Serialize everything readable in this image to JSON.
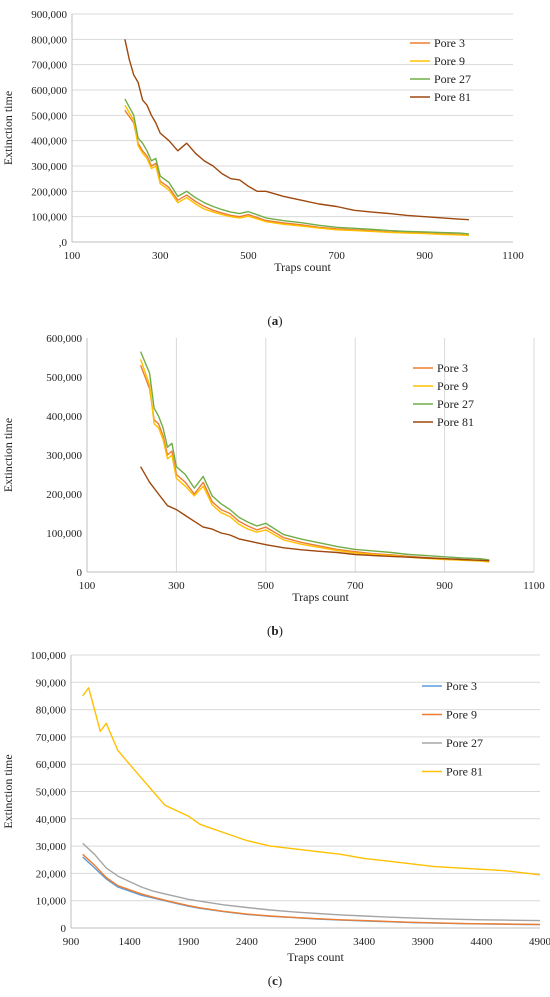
{
  "colors": {
    "pore3_ab": "#ED7D31",
    "pore9_ab": "#FFC000",
    "pore27_ab": "#70AD47",
    "pore81_ab": "#9E480E",
    "pore3_c": "#5B9BD5",
    "pore9_c": "#ED7D31",
    "pore27_c": "#A5A5A5",
    "pore81_c": "#FFC000",
    "gridline": "#D9D9D9",
    "axis": "#BFBFBF"
  },
  "chart_data": [
    {
      "type": "line",
      "caption_open": "(",
      "caption_letter": "a",
      "caption_close": ")",
      "xlabel": "Traps count",
      "ylabel": "Extinction time",
      "xlim": [
        100,
        1100
      ],
      "ylim": [
        0,
        900000
      ],
      "x_ticks": [
        100,
        300,
        500,
        700,
        900,
        1100
      ],
      "x_tick_labels": [
        "100",
        "300",
        "500",
        "700",
        "900",
        "1100"
      ],
      "y_ticks": [
        0,
        100000,
        200000,
        300000,
        400000,
        500000,
        600000,
        700000,
        800000,
        900000
      ],
      "y_tick_labels": [
        ",0",
        "100,000",
        "200,000",
        "300,000",
        "400,000",
        "500,000",
        "600,000",
        "700,000",
        "800,000",
        "900,000"
      ],
      "grid": "horizontal",
      "legend_position": "top-right",
      "series": [
        {
          "name": "Pore 3",
          "color_key": "pore3_ab",
          "x": [
            220,
            240,
            250,
            260,
            270,
            280,
            290,
            300,
            320,
            340,
            360,
            380,
            400,
            420,
            440,
            460,
            480,
            500,
            540,
            580,
            620,
            660,
            700,
            740,
            780,
            820,
            860,
            900,
            940,
            980,
            1000
          ],
          "y": [
            520000,
            470000,
            390000,
            360000,
            340000,
            300000,
            310000,
            240000,
            215000,
            165000,
            185000,
            160000,
            140000,
            125000,
            115000,
            105000,
            100000,
            108000,
            85000,
            75000,
            68000,
            58000,
            52000,
            48000,
            45000,
            40000,
            37000,
            35000,
            32000,
            30000,
            27000
          ]
        },
        {
          "name": "Pore 9",
          "color_key": "pore9_ab",
          "x": [
            220,
            240,
            250,
            260,
            270,
            280,
            290,
            300,
            320,
            340,
            360,
            380,
            400,
            420,
            440,
            460,
            480,
            500,
            540,
            580,
            620,
            660,
            700,
            740,
            780,
            820,
            860,
            900,
            940,
            980,
            1000
          ],
          "y": [
            540000,
            480000,
            380000,
            350000,
            330000,
            290000,
            300000,
            230000,
            205000,
            155000,
            175000,
            150000,
            130000,
            118000,
            108000,
            100000,
            95000,
            102000,
            80000,
            70000,
            63000,
            55000,
            48000,
            45000,
            42000,
            38000,
            35000,
            33000,
            30000,
            28000,
            26000
          ]
        },
        {
          "name": "Pore 27",
          "color_key": "pore27_ab",
          "x": [
            220,
            240,
            250,
            260,
            270,
            280,
            290,
            300,
            320,
            340,
            360,
            380,
            400,
            420,
            440,
            460,
            480,
            500,
            540,
            580,
            620,
            660,
            700,
            740,
            780,
            820,
            860,
            900,
            940,
            980,
            1000
          ],
          "y": [
            565000,
            500000,
            410000,
            390000,
            360000,
            320000,
            330000,
            260000,
            235000,
            180000,
            200000,
            175000,
            155000,
            140000,
            128000,
            118000,
            112000,
            120000,
            95000,
            84000,
            76000,
            66000,
            58000,
            54000,
            50000,
            45000,
            42000,
            40000,
            37000,
            35000,
            32000
          ]
        },
        {
          "name": "Pore 81",
          "color_key": "pore81_ab",
          "x": [
            220,
            230,
            240,
            250,
            260,
            270,
            280,
            290,
            300,
            320,
            340,
            360,
            380,
            400,
            420,
            440,
            460,
            480,
            500,
            520,
            540,
            580,
            620,
            660,
            700,
            740,
            780,
            820,
            860,
            900,
            940,
            980,
            1000
          ],
          "y": [
            800000,
            720000,
            660000,
            630000,
            560000,
            540000,
            500000,
            470000,
            430000,
            400000,
            360000,
            390000,
            350000,
            320000,
            300000,
            270000,
            250000,
            245000,
            220000,
            200000,
            200000,
            180000,
            165000,
            150000,
            140000,
            125000,
            118000,
            112000,
            105000,
            100000,
            95000,
            90000,
            88000
          ]
        }
      ]
    },
    {
      "type": "line",
      "caption_open": "(",
      "caption_letter": "b",
      "caption_close": ")",
      "xlabel": "Traps count",
      "ylabel": "Extinction time",
      "xlim": [
        100,
        1100
      ],
      "ylim": [
        0,
        600000
      ],
      "x_ticks": [
        100,
        300,
        500,
        700,
        900,
        1100
      ],
      "x_tick_labels": [
        "100",
        "300",
        "500",
        "700",
        "900",
        "1100"
      ],
      "y_ticks": [
        0,
        100000,
        200000,
        300000,
        400000,
        500000,
        600000
      ],
      "y_tick_labels": [
        "0",
        "100,000",
        "200,000",
        "300,000",
        "400,000",
        "500,000",
        "600,000"
      ],
      "grid": "vertical",
      "legend_position": "top-right",
      "series": [
        {
          "name": "Pore 3",
          "color_key": "pore3_ab",
          "x": [
            220,
            240,
            250,
            260,
            270,
            280,
            290,
            300,
            320,
            340,
            360,
            380,
            400,
            420,
            440,
            460,
            480,
            500,
            540,
            580,
            620,
            660,
            700,
            740,
            780,
            820,
            860,
            900,
            940,
            980,
            1000
          ],
          "y": [
            530000,
            470000,
            390000,
            380000,
            350000,
            300000,
            310000,
            250000,
            230000,
            200000,
            230000,
            180000,
            160000,
            150000,
            130000,
            118000,
            108000,
            115000,
            88000,
            76000,
            67000,
            58000,
            52000,
            47000,
            44000,
            40000,
            37000,
            34000,
            31000,
            30000,
            28000
          ]
        },
        {
          "name": "Pore 9",
          "color_key": "pore9_ab",
          "x": [
            220,
            240,
            250,
            260,
            270,
            280,
            290,
            300,
            320,
            340,
            360,
            380,
            400,
            420,
            440,
            460,
            480,
            500,
            540,
            580,
            620,
            660,
            700,
            740,
            780,
            820,
            860,
            900,
            940,
            980,
            1000
          ],
          "y": [
            545000,
            480000,
            380000,
            370000,
            340000,
            290000,
            300000,
            240000,
            220000,
            195000,
            220000,
            172000,
            152000,
            142000,
            122000,
            110000,
            102000,
            108000,
            82000,
            71000,
            63000,
            55000,
            49000,
            45000,
            42000,
            38000,
            35000,
            32000,
            30000,
            28000,
            26000
          ]
        },
        {
          "name": "Pore 27",
          "color_key": "pore27_ab",
          "x": [
            220,
            240,
            250,
            260,
            270,
            280,
            290,
            300,
            320,
            340,
            360,
            380,
            400,
            420,
            440,
            460,
            480,
            500,
            540,
            580,
            620,
            660,
            700,
            740,
            780,
            820,
            860,
            900,
            940,
            980,
            1000
          ],
          "y": [
            565000,
            510000,
            420000,
            400000,
            370000,
            320000,
            330000,
            270000,
            250000,
            215000,
            245000,
            195000,
            175000,
            160000,
            140000,
            128000,
            118000,
            125000,
            96000,
            84000,
            75000,
            65000,
            58000,
            54000,
            50000,
            45000,
            42000,
            39000,
            36000,
            34000,
            31000
          ]
        },
        {
          "name": "Pore 81",
          "color_key": "pore81_ab",
          "x": [
            220,
            240,
            260,
            280,
            300,
            320,
            340,
            360,
            380,
            400,
            420,
            440,
            460,
            480,
            500,
            540,
            580,
            620,
            660,
            700,
            740,
            780,
            820,
            860,
            900,
            940,
            980,
            1000
          ],
          "y": [
            270000,
            230000,
            200000,
            170000,
            160000,
            145000,
            130000,
            115000,
            110000,
            100000,
            95000,
            85000,
            80000,
            75000,
            70000,
            62000,
            57000,
            53000,
            50000,
            45000,
            42000,
            40000,
            38000,
            36000,
            34000,
            32000,
            30000,
            29000
          ]
        }
      ]
    },
    {
      "type": "line",
      "caption_open": "(",
      "caption_letter": "c",
      "caption_close": ")",
      "xlabel": "Traps count",
      "ylabel": "Extinction time",
      "xlim": [
        900,
        4900
      ],
      "ylim": [
        0,
        100000
      ],
      "x_ticks": [
        900,
        1400,
        1900,
        2400,
        2900,
        3400,
        3900,
        4400,
        4900
      ],
      "x_tick_labels": [
        "900",
        "1400",
        "1900",
        "2400",
        "2900",
        "3400",
        "3900",
        "4400",
        "4900"
      ],
      "y_ticks": [
        0,
        10000,
        20000,
        30000,
        40000,
        50000,
        60000,
        70000,
        80000,
        90000,
        100000
      ],
      "y_tick_labels": [
        "0",
        "10,000",
        "20,000",
        "30,000",
        "40,000",
        "50,000",
        "60,000",
        "70,000",
        "80,000",
        "90,000",
        "100,000"
      ],
      "grid": "horizontal",
      "legend_position": "top-right",
      "series": [
        {
          "name": "Pore 3",
          "color_key": "pore3_c",
          "x": [
            1000,
            1100,
            1200,
            1300,
            1400,
            1500,
            1600,
            1700,
            1800,
            1900,
            2000,
            2200,
            2400,
            2600,
            2800,
            3000,
            3200,
            3400,
            3600,
            3800,
            4000,
            4200,
            4400,
            4600,
            4800,
            4900
          ],
          "y": [
            26000,
            22000,
            18000,
            15000,
            13500,
            12000,
            11000,
            10000,
            9000,
            8000,
            7200,
            6000,
            5000,
            4300,
            3800,
            3300,
            2900,
            2600,
            2300,
            2000,
            1800,
            1600,
            1500,
            1400,
            1300,
            1250
          ]
        },
        {
          "name": "Pore 9",
          "color_key": "pore9_c",
          "x": [
            1000,
            1100,
            1200,
            1300,
            1400,
            1500,
            1600,
            1700,
            1800,
            1900,
            2000,
            2200,
            2400,
            2600,
            2800,
            3000,
            3200,
            3400,
            3600,
            3800,
            4000,
            4200,
            4400,
            4600,
            4800,
            4900
          ],
          "y": [
            27000,
            23000,
            18500,
            15500,
            14000,
            12500,
            11300,
            10200,
            9200,
            8200,
            7400,
            6100,
            5100,
            4400,
            3900,
            3400,
            3000,
            2700,
            2400,
            2100,
            1900,
            1700,
            1550,
            1450,
            1350,
            1300
          ]
        },
        {
          "name": "Pore 27",
          "color_key": "pore27_c",
          "x": [
            1000,
            1100,
            1200,
            1300,
            1400,
            1500,
            1600,
            1700,
            1800,
            1900,
            2000,
            2200,
            2400,
            2600,
            2800,
            3000,
            3200,
            3400,
            3600,
            3800,
            4000,
            4200,
            4400,
            4600,
            4800,
            4900
          ],
          "y": [
            31000,
            27000,
            22000,
            19000,
            17000,
            15000,
            13500,
            12500,
            11500,
            10500,
            9800,
            8500,
            7500,
            6600,
            5900,
            5300,
            4800,
            4400,
            4000,
            3700,
            3400,
            3200,
            3000,
            2900,
            2800,
            2700
          ]
        },
        {
          "name": "Pore 81",
          "color_key": "pore81_c",
          "x": [
            1000,
            1050,
            1100,
            1150,
            1200,
            1300,
            1400,
            1500,
            1600,
            1700,
            1800,
            1900,
            2000,
            2200,
            2400,
            2600,
            2800,
            3000,
            3200,
            3400,
            3600,
            3800,
            4000,
            4200,
            4400,
            4600,
            4800,
            4900
          ],
          "y": [
            85000,
            88000,
            80000,
            72000,
            75000,
            65000,
            60000,
            55000,
            50000,
            45000,
            43000,
            41000,
            38000,
            35000,
            32000,
            30000,
            29000,
            28000,
            27000,
            25500,
            24500,
            23500,
            22500,
            22000,
            21500,
            21000,
            20000,
            19500
          ]
        }
      ]
    }
  ]
}
